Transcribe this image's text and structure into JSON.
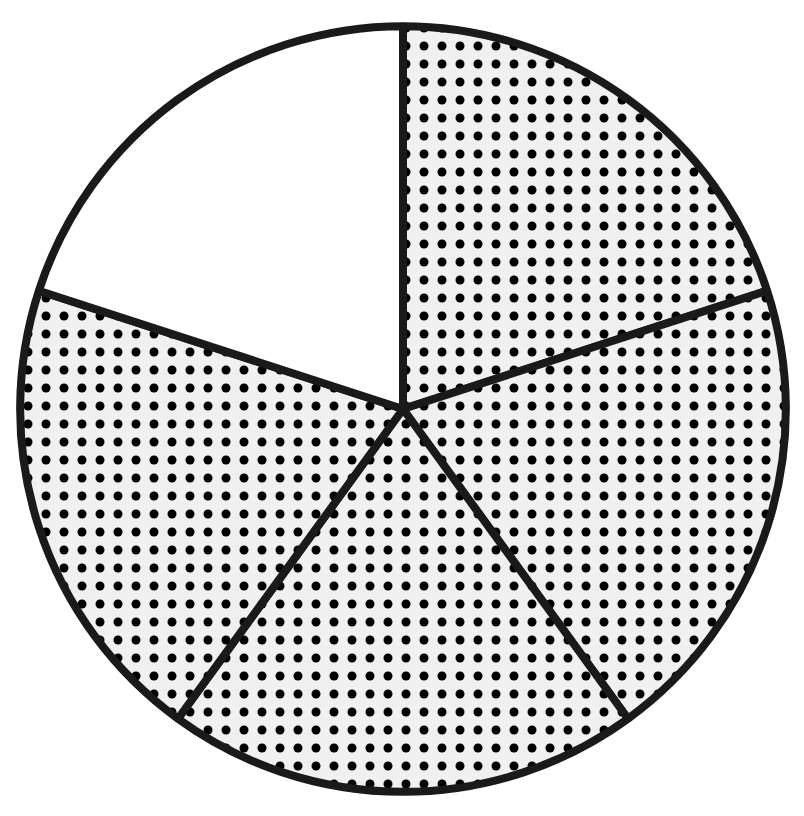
{
  "chart_data": {
    "type": "pie",
    "categories": [
      null,
      null,
      null,
      null,
      null
    ],
    "values": [
      20,
      20,
      20,
      20,
      20
    ],
    "colors": [
      "#f0f0f0",
      "#f0f0f0",
      "#f0f0f0",
      "#f0f0f0",
      "#ffffff"
    ]
  }
}
